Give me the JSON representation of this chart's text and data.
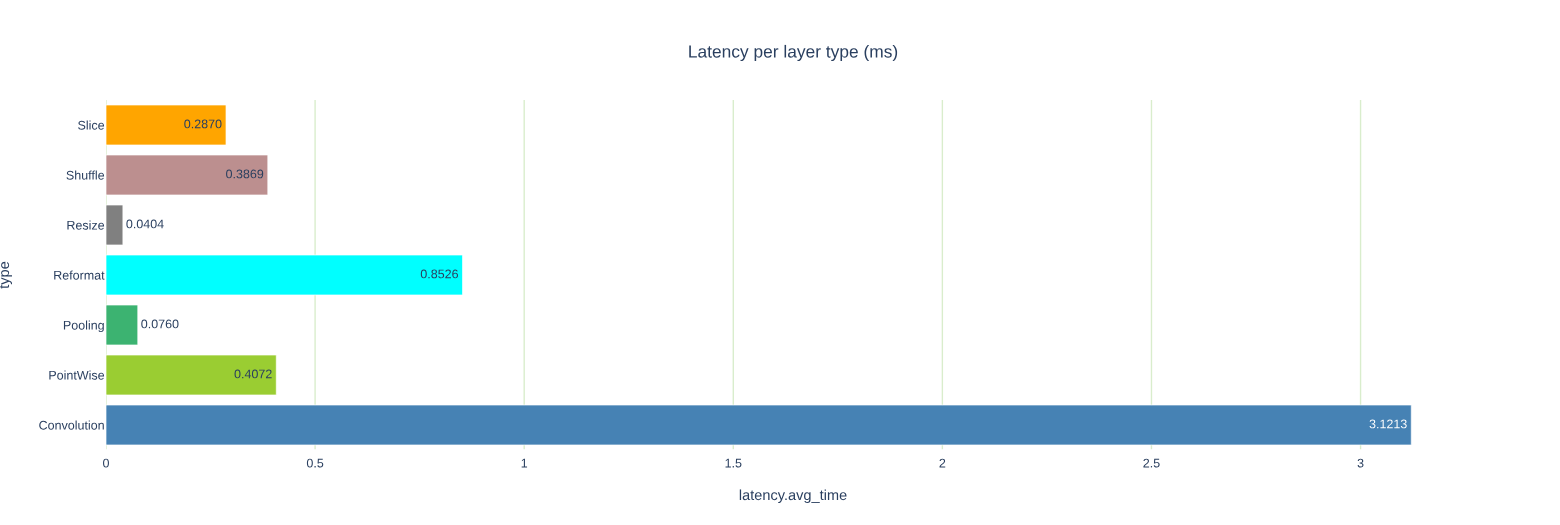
{
  "chart_data": {
    "type": "bar",
    "orientation": "horizontal",
    "title": "Latency per layer type (ms)",
    "xlabel": "latency.avg_time",
    "ylabel": "type",
    "categories": [
      "Slice",
      "Shuffle",
      "Resize",
      "Reformat",
      "Pooling",
      "PointWise",
      "Convolution"
    ],
    "values": [
      0.287,
      0.3869,
      0.0404,
      0.8526,
      0.076,
      0.4072,
      3.1213
    ],
    "value_labels": [
      "0.2870",
      "0.3869",
      "0.0404",
      "0.8526",
      "0.0760",
      "0.4072",
      "3.1213"
    ],
    "colors": [
      "#ffa500",
      "#bc8f8f",
      "#808080",
      "#00ffff",
      "#3cb371",
      "#9acd32",
      "#4682b4"
    ],
    "xlim": [
      0,
      3.2856
    ],
    "xticks": [
      0,
      0.5,
      1,
      1.5,
      2,
      2.5,
      3
    ],
    "grid": "x"
  }
}
